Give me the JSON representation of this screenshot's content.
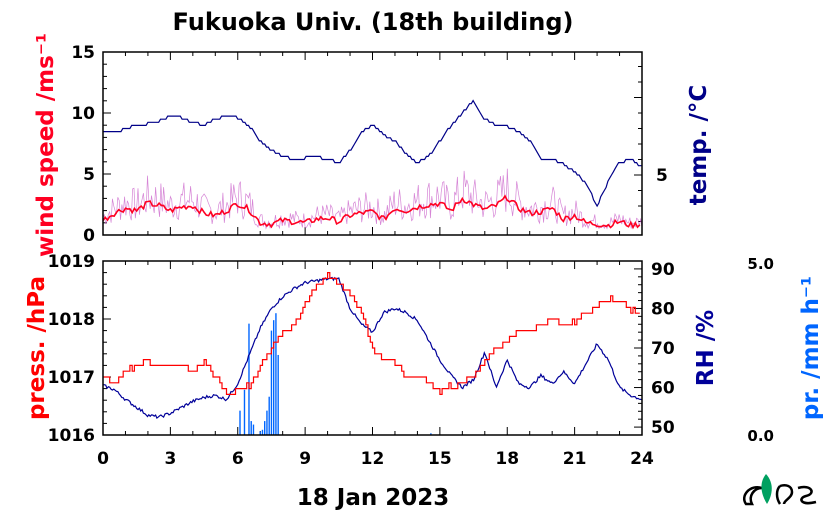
{
  "title": "Fukuoka Univ. (18th building)",
  "date_label": "18 Jan 2023",
  "colors": {
    "wind": "#ff0022",
    "wind_gust": "#cc66cc",
    "temp": "#000088",
    "press": "#ff0000",
    "rh": "#000099",
    "precip": "#0066ff",
    "logo_green": "#00a060"
  },
  "chart_data": [
    {
      "type": "line",
      "panel": "top",
      "title": "Fukuoka Univ. (18th building)",
      "xlabel": "18 Jan 2023",
      "xlim": [
        0,
        24
      ],
      "x_ticks": [
        "0",
        "3",
        "6",
        "9",
        "12",
        "15",
        "18",
        "21",
        "24"
      ],
      "y_left": {
        "label": "wind speed /ms⁻¹",
        "lim": [
          0,
          15
        ],
        "ticks": [
          "0",
          "5",
          "10",
          "15"
        ]
      },
      "y_right": {
        "label": "temp. /°C",
        "ticks": [
          "5"
        ]
      },
      "grid": false,
      "series": [
        {
          "name": "wind speed",
          "axis": "left",
          "x": [
            0,
            0.5,
            1,
            1.5,
            2,
            2.5,
            3,
            3.5,
            4,
            4.5,
            5,
            5.5,
            6,
            6.5,
            7,
            7.5,
            8,
            8.5,
            9,
            9.5,
            10,
            10.5,
            11,
            11.5,
            12,
            12.5,
            13,
            13.5,
            14,
            14.5,
            15,
            15.5,
            16,
            16.5,
            17,
            17.5,
            18,
            18.5,
            19,
            19.5,
            20,
            20.5,
            21,
            21.5,
            22,
            22.5,
            23,
            23.5,
            24
          ],
          "values": [
            1.2,
            1.8,
            2.2,
            2.0,
            2.6,
            2.4,
            2.0,
            2.3,
            2.4,
            1.8,
            1.6,
            2.0,
            2.6,
            2.1,
            1.0,
            0.9,
            1.2,
            1.1,
            1.0,
            1.3,
            1.4,
            1.1,
            1.6,
            1.8,
            1.9,
            1.3,
            2.2,
            2.0,
            2.3,
            2.5,
            2.6,
            2.0,
            3.0,
            2.5,
            2.1,
            2.4,
            3.1,
            2.2,
            1.8,
            1.9,
            2.2,
            1.3,
            1.6,
            1.0,
            0.9,
            0.8,
            1.1,
            0.8,
            0.9
          ]
        },
        {
          "name": "temperature",
          "axis": "right",
          "x": [
            0,
            0.5,
            1,
            1.5,
            2,
            2.5,
            3,
            3.5,
            4,
            4.5,
            5,
            5.5,
            6,
            6.5,
            7,
            7.5,
            8,
            8.5,
            9,
            9.5,
            10,
            10.5,
            11,
            11.5,
            12,
            12.5,
            13,
            13.5,
            14,
            14.5,
            15,
            15.5,
            16,
            16.5,
            17,
            17.5,
            18,
            18.5,
            19,
            19.5,
            20,
            20.5,
            21,
            21.5,
            22,
            22.5,
            23,
            23.5,
            24
          ],
          "values": [
            7.8,
            7.7,
            8.0,
            8.2,
            8.3,
            8.5,
            8.8,
            8.7,
            8.4,
            8.2,
            8.6,
            8.8,
            8.7,
            8.2,
            7.2,
            6.6,
            6.2,
            6.0,
            6.1,
            6.2,
            6.0,
            5.8,
            6.6,
            7.8,
            8.2,
            7.6,
            7.2,
            6.4,
            5.8,
            6.2,
            7.2,
            8.2,
            9.0,
            9.8,
            8.6,
            8.2,
            8.1,
            7.8,
            7.2,
            6.0,
            6.0,
            5.7,
            5.2,
            4.5,
            3.0,
            4.6,
            5.8,
            6.0,
            5.5
          ]
        }
      ]
    },
    {
      "type": "line",
      "panel": "bottom",
      "xlim": [
        0,
        24
      ],
      "x_ticks": [
        "0",
        "3",
        "6",
        "9",
        "12",
        "15",
        "18",
        "21",
        "24"
      ],
      "y_left": {
        "label": "press. /hPa",
        "lim": [
          1016,
          1019
        ],
        "ticks": [
          "1016",
          "1017",
          "1018",
          "1019"
        ]
      },
      "y_right": {
        "label": "RH /%",
        "lim": [
          48,
          92
        ],
        "ticks": [
          "50",
          "60",
          "70",
          "80",
          "90"
        ]
      },
      "y_far_right": {
        "label": "pr. /mm h⁻¹",
        "lim": [
          0,
          5
        ],
        "ticks": [
          "0.0",
          "5.0"
        ]
      },
      "grid": false,
      "series": [
        {
          "name": "pressure",
          "axis": "left",
          "x": [
            0,
            0.5,
            1,
            1.5,
            2,
            2.5,
            3,
            3.5,
            4,
            4.5,
            5,
            5.5,
            6,
            6.5,
            7,
            7.5,
            8,
            8.5,
            9,
            9.5,
            10,
            10.5,
            11,
            11.5,
            12,
            12.5,
            13,
            13.5,
            14,
            14.5,
            15,
            15.5,
            16,
            16.5,
            17,
            17.5,
            18,
            18.5,
            19,
            19.5,
            20,
            20.5,
            21,
            21.5,
            22,
            22.5,
            23,
            23.5,
            24
          ],
          "values": [
            1017.0,
            1016.9,
            1017.1,
            1017.2,
            1017.25,
            1017.2,
            1017.25,
            1017.2,
            1017.1,
            1017.25,
            1017.0,
            1016.7,
            1016.8,
            1016.85,
            1017.2,
            1017.5,
            1017.8,
            1017.9,
            1018.3,
            1018.6,
            1018.75,
            1018.6,
            1018.4,
            1018.1,
            1017.5,
            1017.3,
            1017.25,
            1017.0,
            1017.0,
            1016.9,
            1016.75,
            1016.85,
            1016.9,
            1017.0,
            1017.3,
            1017.5,
            1017.6,
            1017.8,
            1017.8,
            1017.9,
            1018.0,
            1017.9,
            1017.95,
            1018.1,
            1018.2,
            1018.35,
            1018.3,
            1018.15,
            1018.1
          ]
        },
        {
          "name": "relative humidity",
          "axis": "right",
          "x": [
            0,
            0.5,
            1,
            1.5,
            2,
            2.5,
            3,
            3.5,
            4,
            4.5,
            5,
            5.5,
            6,
            6.5,
            7,
            7.5,
            8,
            8.5,
            9,
            9.5,
            10,
            10.5,
            11,
            11.5,
            12,
            12.5,
            13,
            13.5,
            14,
            14.5,
            15,
            15.5,
            16,
            16.5,
            17,
            17.5,
            18,
            18.5,
            19,
            19.5,
            20,
            20.5,
            21,
            21.5,
            22,
            22.5,
            23,
            23.5,
            24
          ],
          "values": [
            60.5,
            59.5,
            57.0,
            55.0,
            53.0,
            52.5,
            53.5,
            55.0,
            56.5,
            57.5,
            58.0,
            57.0,
            61.0,
            68.0,
            75.0,
            80.0,
            83.0,
            85.0,
            86.5,
            87.0,
            87.5,
            87.5,
            80.0,
            76.0,
            74.0,
            79.0,
            80.0,
            79.0,
            77.0,
            72.0,
            67.0,
            63.0,
            60.0,
            62.0,
            69.0,
            60.0,
            67.0,
            61.0,
            60.0,
            63.0,
            61.0,
            64.0,
            61.0,
            66.0,
            71.0,
            67.0,
            60.0,
            58.0,
            57.0
          ]
        },
        {
          "name": "precipitation",
          "type": "bar",
          "axis": "far_right",
          "x": [
            6.1,
            6.3,
            6.5,
            6.6,
            6.7,
            7.0,
            7.1,
            7.2,
            7.3,
            7.4,
            7.5,
            7.6,
            7.7,
            7.8,
            14.6
          ],
          "values": [
            0.7,
            1.3,
            3.2,
            0.4,
            0.3,
            0.1,
            0.15,
            0.4,
            0.7,
            1.1,
            3.0,
            3.3,
            3.5,
            2.3,
            0.05
          ]
        }
      ]
    }
  ]
}
